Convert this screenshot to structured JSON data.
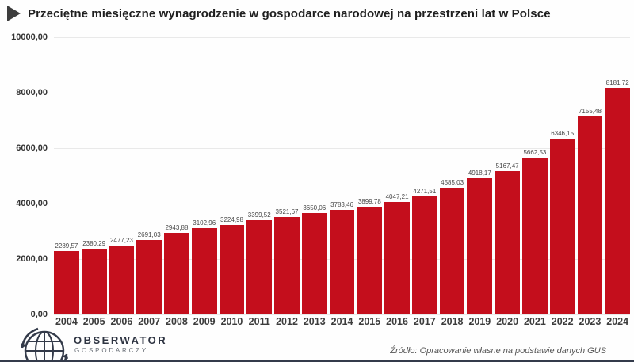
{
  "header": {
    "title": "Przeciętne miesięczne wynagrodzenie w gospodarce narodowej na przestrzeni lat w Polsce"
  },
  "colors": {
    "bar": "#c40e1c",
    "brand_dark": "#343b4b",
    "grid": "#e9e9e9"
  },
  "chart_data": {
    "type": "bar",
    "title": "Przeciętne miesięczne wynagrodzenie w gospodarce narodowej na przestrzeni lat w Polsce",
    "xlabel": "",
    "ylabel": "",
    "ylim": [
      0,
      10000
    ],
    "grid": true,
    "legend": "none",
    "categories": [
      "2004",
      "2005",
      "2006",
      "2007",
      "2008",
      "2009",
      "2010",
      "2011",
      "2012",
      "2013",
      "2014",
      "2015",
      "2016",
      "2017",
      "2018",
      "2019",
      "2020",
      "2021",
      "2022",
      "2023",
      "2024"
    ],
    "values": [
      2289.57,
      2380.29,
      2477.23,
      2691.03,
      2943.88,
      3102.96,
      3224.98,
      3399.52,
      3521.67,
      3650.06,
      3783.46,
      3899.78,
      4047.21,
      4271.51,
      4585.03,
      4918.17,
      5167.47,
      5662.53,
      6346.15,
      7155.48,
      8181.72
    ],
    "value_labels": [
      "2289,57",
      "2380,29",
      "2477,23",
      "2691,03",
      "2943,88",
      "3102,96",
      "3224,98",
      "3399,52",
      "3521,67",
      "3650,06",
      "3783,46",
      "3899,78",
      "4047,21",
      "4271,51",
      "4585,03",
      "4918,17",
      "5167,47",
      "5662,53",
      "6346,15",
      "7155,48",
      "8181,72"
    ],
    "yticks": [
      {
        "value": 10000,
        "label": "10000,00"
      },
      {
        "value": 8000,
        "label": "8000,00"
      },
      {
        "value": 6000,
        "label": "6000,00"
      },
      {
        "value": 4000,
        "label": "4000,00"
      },
      {
        "value": 2000,
        "label": "2000,00"
      },
      {
        "value": 0,
        "label": "0,00"
      }
    ]
  },
  "footer": {
    "logo_primary": "OBSERWATOR",
    "logo_secondary": "GOSPODARCZY",
    "source": "Źródło: Opracowanie własne na podstawie danych GUS"
  }
}
